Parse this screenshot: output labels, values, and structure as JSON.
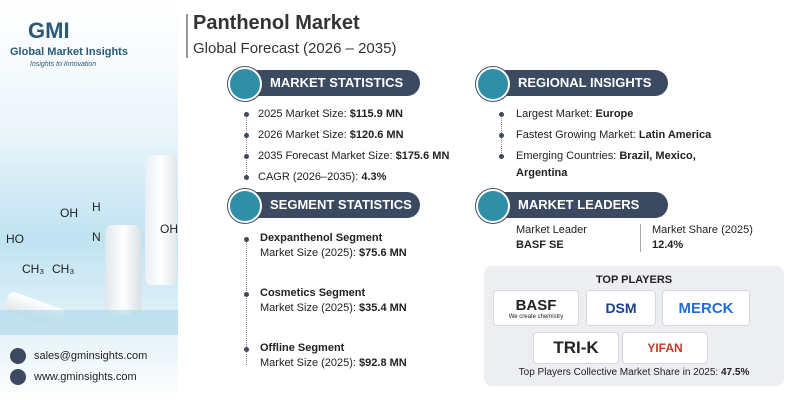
{
  "brand": {
    "name": "GMI",
    "full_name": "Global Market Insights",
    "tagline": "Insights to Innovation"
  },
  "header": {
    "title": "Panthenol Market",
    "subtitle": "Global Forecast (2026 – 2035)"
  },
  "molecule_labels": [
    "OH",
    "H",
    "N",
    "OH",
    "HO",
    "CH₃",
    "CH₃"
  ],
  "market_statistics": {
    "heading": "MARKET STATISTICS",
    "items": [
      {
        "label": "2025 Market Size:",
        "value": "$115.9 MN"
      },
      {
        "label": "2026 Market Size:",
        "value": "$120.6 MN"
      },
      {
        "label": "2035 Forecast Market Size:",
        "value": "$175.6 MN"
      },
      {
        "label": "CAGR (2026–2035):",
        "value": "4.3%"
      }
    ]
  },
  "regional_insights": {
    "heading": "REGIONAL INSIGHTS",
    "items": [
      {
        "label": "Largest Market:",
        "value": "Europe"
      },
      {
        "label": "Fastest Growing Market:",
        "value": "Latin America"
      },
      {
        "label": "Emerging Countries:",
        "value": "Brazil, Mexico, Argentina"
      }
    ]
  },
  "segment_statistics": {
    "heading": "SEGMENT STATISTICS",
    "items": [
      {
        "name": "Dexpanthenol Segment",
        "label": "Market Size (2025):",
        "value": "$75.6 MN"
      },
      {
        "name": "Cosmetics Segment",
        "label": "Market Size (2025):",
        "value": "$35.4 MN"
      },
      {
        "name": "Offline Segment",
        "label": "Market Size (2025):",
        "value": "$92.8 MN"
      }
    ]
  },
  "market_leaders": {
    "heading": "MARKET LEADERS",
    "leader_label": "Market Leader",
    "leader": "BASF SE",
    "share_label": "Market Share (2025)",
    "share": "12.4%"
  },
  "top_players": {
    "heading": "TOP PLAYERS",
    "players": [
      "BASF",
      "DSM",
      "MERCK",
      "TRI-K",
      "YIFAN"
    ],
    "basf_tagline": "We create chemistry",
    "footer_label": "Top Players Collective Market Share in 2025:",
    "footer_value": "47.5%"
  },
  "contact": {
    "email": "sales@gminsights.com",
    "website": "www.gminsights.com"
  }
}
